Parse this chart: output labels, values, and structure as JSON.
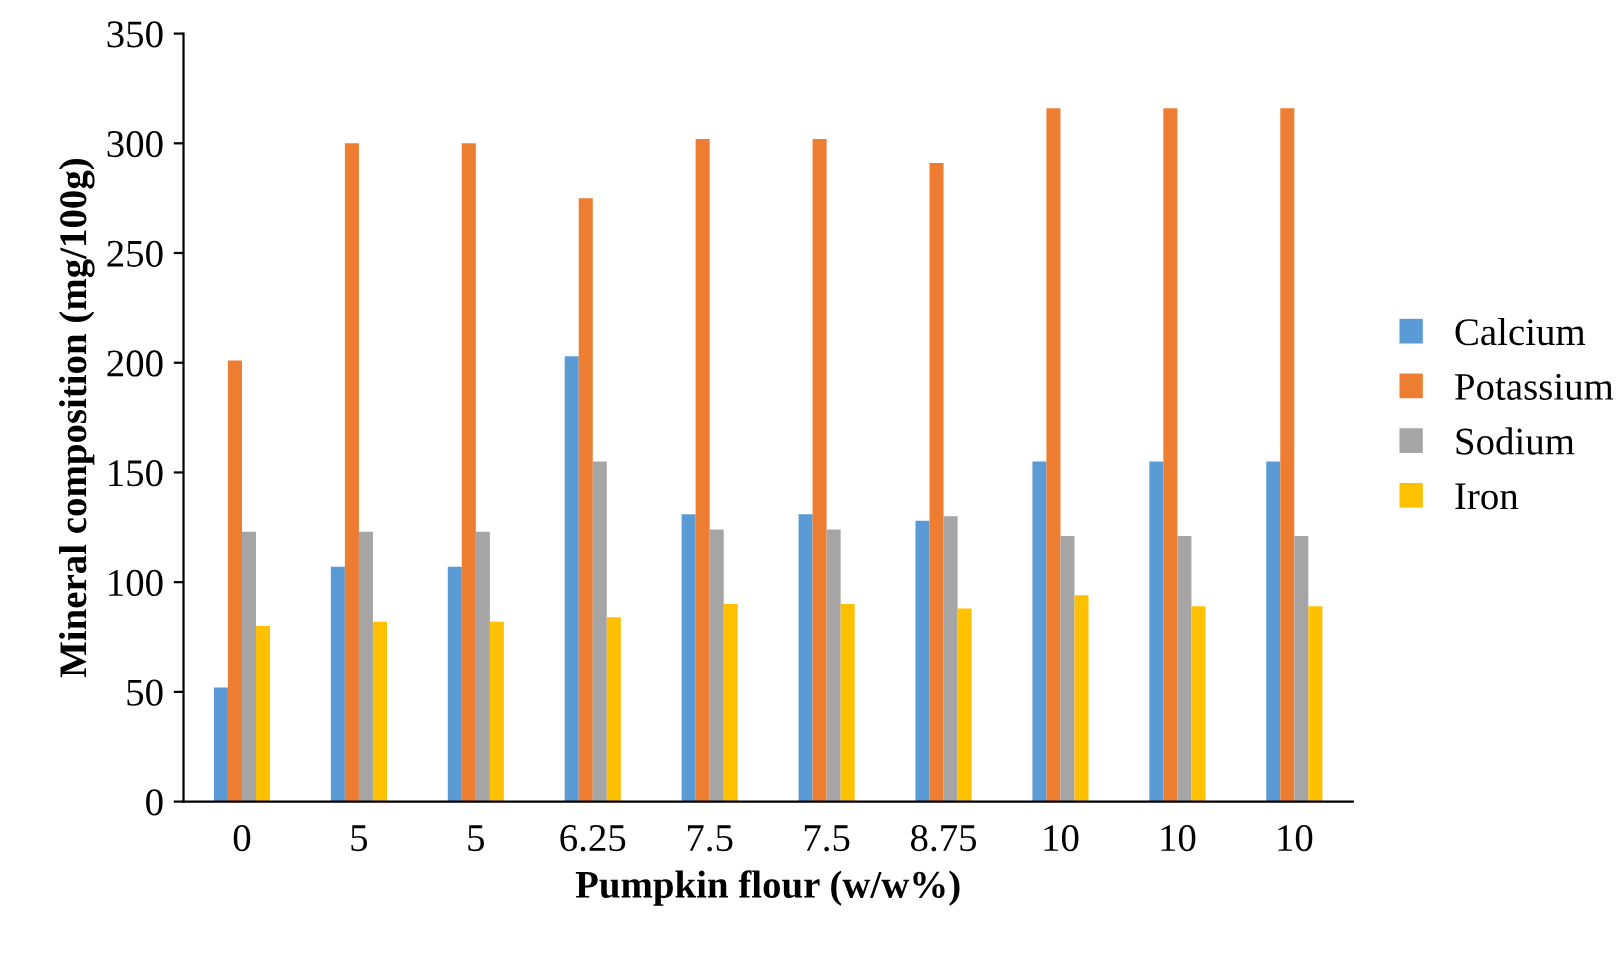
{
  "chart_data": {
    "type": "bar",
    "xlabel": "Pumpkin flour (w/w%)",
    "ylabel": "Mineral composition (mg/100g)",
    "categories": [
      "0",
      "5",
      "5",
      "6.25",
      "7.5",
      "7.5",
      "8.75",
      "10",
      "10",
      "10"
    ],
    "series": [
      {
        "name": "Calcium",
        "color": "#5b9bd5",
        "values": [
          52,
          107,
          107,
          203,
          131,
          131,
          128,
          155,
          155,
          155
        ]
      },
      {
        "name": "Potassium",
        "color": "#ed7d31",
        "values": [
          201,
          300,
          300,
          275,
          302,
          302,
          291,
          316,
          316,
          316
        ]
      },
      {
        "name": "Sodium",
        "color": "#a5a5a5",
        "values": [
          123,
          123,
          123,
          155,
          124,
          124,
          130,
          121,
          121,
          121
        ]
      },
      {
        "name": "Iron",
        "color": "#ffc000",
        "values": [
          80,
          82,
          82,
          84,
          90,
          90,
          88,
          94,
          89,
          89
        ]
      }
    ],
    "ylim": [
      0,
      350
    ],
    "yticks": [
      0,
      50,
      100,
      150,
      200,
      250,
      300,
      350
    ],
    "grid": false,
    "legend": "right"
  }
}
